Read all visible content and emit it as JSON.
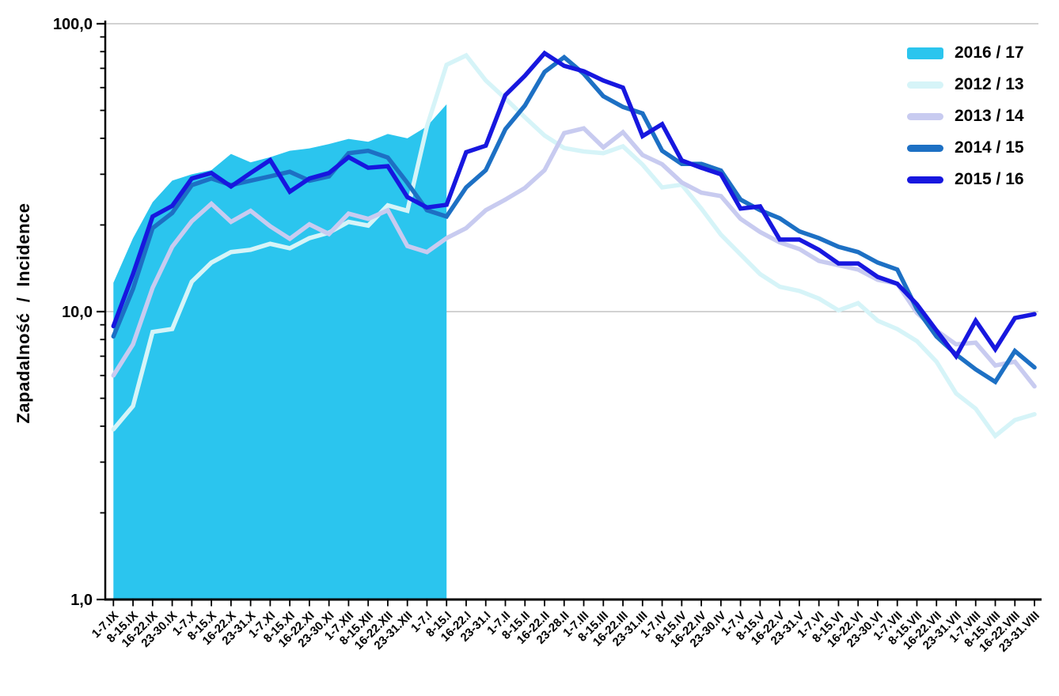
{
  "chart_data": {
    "type": "line",
    "title": "",
    "ylabel": "Zapadalność  /  Incidence",
    "xlabel": "",
    "yscale": "log",
    "ylim": [
      1,
      100
    ],
    "ytick_values": [
      100,
      10,
      1
    ],
    "ytick_labels": [
      "100,0",
      "10,0",
      "1,0"
    ],
    "minor_ytick_values": [
      2,
      3,
      4,
      5,
      6,
      7,
      8,
      9,
      20,
      30,
      40,
      50,
      60,
      70,
      80,
      90
    ],
    "gridlines_at": [
      100,
      10
    ],
    "grid_color": "#b8b8b8",
    "legend_position": "top-right",
    "categories": [
      "1-7.IX",
      "8-15.IX",
      "16-22.IX",
      "23-30.IX",
      "1-7.X",
      "8-15.X",
      "16-22.X",
      "23-31.X",
      "1-7.XI",
      "8-15.XI",
      "16-22.XI",
      "23-30.XI",
      "1-7.XII",
      "8-15.XII",
      "16-22.XII",
      "23-31.XII",
      "1-7.I",
      "8-15.I",
      "16-22.I",
      "23-31.I",
      "1-7.II",
      "8-15.II",
      "16-22.II",
      "23-28.II",
      "1-7.III",
      "8-15.III",
      "16-22.III",
      "23-31.III",
      "1-7.IV",
      "8-15.IV",
      "16-22.IV",
      "23-30.IV",
      "1-7.V",
      "8-15.V",
      "16-22.V",
      "23-31.V",
      "1-7.VI",
      "8-15.VI",
      "16-22.VI",
      "23-30.VI",
      "1-7.VII",
      "8-15.VII",
      "16-22.VII",
      "23-31.VII",
      "1-7.VIII",
      "8-15.VIII",
      "16-22.VIII",
      "23-31.VIII"
    ],
    "area_series": {
      "name": "2016 / 17",
      "color": "#2bc5ee",
      "values": [
        12.6,
        18,
        24,
        28.5,
        30,
        31,
        35.3,
        33,
        34.4,
        36.2,
        36.9,
        38.2,
        39.8,
        38.9,
        41.4,
        40,
        44,
        52.5
      ]
    },
    "series": [
      {
        "name": "2012 / 13",
        "color": "#d6f4f8",
        "values": [
          3.9,
          4.7,
          8.5,
          8.7,
          12.7,
          14.8,
          16.1,
          16.4,
          17.2,
          16.6,
          18,
          18.8,
          20.5,
          19.9,
          23.4,
          22.4,
          44,
          72,
          77.6,
          63.5,
          55,
          47.3,
          40.9,
          37,
          36,
          35.5,
          37.5,
          32.4,
          27,
          27.6,
          22.8,
          18.5,
          15.8,
          13.5,
          12.2,
          11.8,
          11.1,
          10.1,
          10.7,
          9.3,
          8.7,
          7.9,
          6.7,
          5.2,
          4.6,
          3.7,
          4.2,
          4.4
        ]
      },
      {
        "name": "2013 / 14",
        "color": "#c8cbf0",
        "values": [
          6,
          7.7,
          12.1,
          16.8,
          20.6,
          23.7,
          20.5,
          22.4,
          19.8,
          17.9,
          20.1,
          18.6,
          21.9,
          21,
          22.5,
          16.9,
          16.1,
          18,
          19.5,
          22.5,
          24.5,
          26.9,
          31,
          41.7,
          43.3,
          37.2,
          42,
          35,
          32.5,
          28.1,
          25.9,
          25.2,
          21,
          18.9,
          17.4,
          16.5,
          15,
          14.5,
          14,
          12.9,
          12.5,
          9.9,
          8.6,
          7.7,
          7.8,
          6.5,
          6.7,
          5.5
        ]
      },
      {
        "name": "2014 / 15",
        "color": "#1d70c4",
        "values": [
          8.2,
          12,
          19.5,
          22,
          27.5,
          29,
          27.5,
          28.5,
          29.5,
          30.6,
          28.5,
          29.5,
          35.5,
          36.2,
          34.3,
          28,
          22.5,
          21.4,
          27,
          31,
          43,
          52,
          68,
          76.5,
          67,
          56,
          51.4,
          48.8,
          36.2,
          32.6,
          32.6,
          30.9,
          24.5,
          22.5,
          21.1,
          19,
          18,
          16.8,
          16.1,
          14.8,
          14,
          10.2,
          8.2,
          7.1,
          6.3,
          5.7,
          7.3,
          6.4
        ]
      },
      {
        "name": "2015 / 16",
        "color": "#1717df",
        "values": [
          8.9,
          13.5,
          21.4,
          23.3,
          29,
          30.3,
          27.2,
          30.3,
          33.6,
          26.1,
          29,
          30.3,
          34.4,
          31.6,
          32,
          25,
          23,
          23.5,
          35.8,
          37.7,
          56.5,
          66,
          79,
          71.4,
          68.4,
          63.5,
          60,
          40.7,
          44.8,
          33.5,
          31.6,
          30,
          22.8,
          23.2,
          17.8,
          17.8,
          16.4,
          14.7,
          14.7,
          13.2,
          12.5,
          10.6,
          8.6,
          7,
          9.3,
          7.4,
          9.5,
          9.8
        ]
      }
    ],
    "legend_items": [
      {
        "label": "2016 / 17"
      },
      {
        "label": "2012 / 13"
      },
      {
        "label": "2013 / 14"
      },
      {
        "label": "2014 / 15"
      },
      {
        "label": "2015 / 16"
      }
    ]
  }
}
